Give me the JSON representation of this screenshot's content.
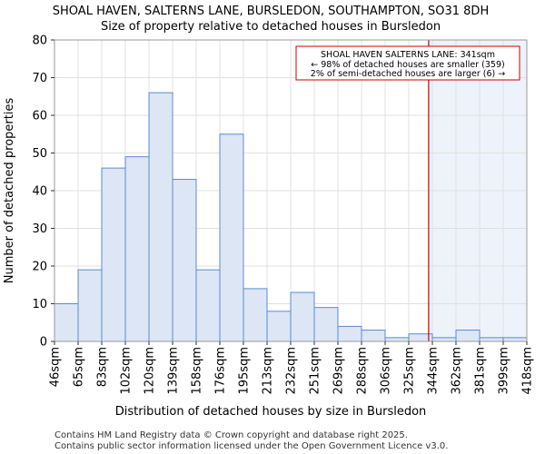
{
  "chart_data": {
    "type": "bar",
    "title": "SHOAL HAVEN, SALTERNS LANE, BURSLEDON, SOUTHAMPTON, SO31 8DH",
    "subtitle": "Size of property relative to detached houses in Bursledon",
    "xlabel": "Distribution of detached houses by size in Bursledon",
    "ylabel": "Number of detached properties",
    "ylim": [
      0,
      80
    ],
    "yticks": [
      0,
      10,
      20,
      30,
      40,
      50,
      60,
      70,
      80
    ],
    "grid": true,
    "x_bin_edges": [
      46,
      65,
      83,
      102,
      120,
      139,
      158,
      176,
      195,
      213,
      232,
      251,
      269,
      288,
      306,
      325,
      344,
      362,
      381,
      399,
      418
    ],
    "tick_labels": [
      "46sqm",
      "65sqm",
      "83sqm",
      "102sqm",
      "120sqm",
      "139sqm",
      "158sqm",
      "176sqm",
      "195sqm",
      "213sqm",
      "232sqm",
      "251sqm",
      "269sqm",
      "288sqm",
      "306sqm",
      "325sqm",
      "344sqm",
      "362sqm",
      "381sqm",
      "399sqm",
      "418sqm"
    ],
    "values": [
      10,
      19,
      46,
      49,
      66,
      43,
      19,
      55,
      14,
      8,
      13,
      9,
      4,
      3,
      1,
      2,
      1,
      3,
      1,
      1
    ],
    "highlight": {
      "value_sqm": 341,
      "line_color": "#cc0000",
      "shade_from_sqm": 341,
      "shade_to_sqm": 418,
      "shade_color": "#eef2fb"
    },
    "bar_color": "#dce6f5",
    "bar_edge_color": "#5b8bd0",
    "annotation": {
      "lines": [
        "SHOAL HAVEN SALTERNS LANE: 341sqm",
        "← 98% of detached houses are smaller (359)",
        "2% of semi-detached houses are larger (6) →"
      ],
      "border_color": "#cc0000",
      "placement": "top-right"
    }
  },
  "footer": {
    "line1": "Contains HM Land Registry data © Crown copyright and database right 2025.",
    "line2": "Contains public sector information licensed under the Open Government Licence v3.0."
  }
}
